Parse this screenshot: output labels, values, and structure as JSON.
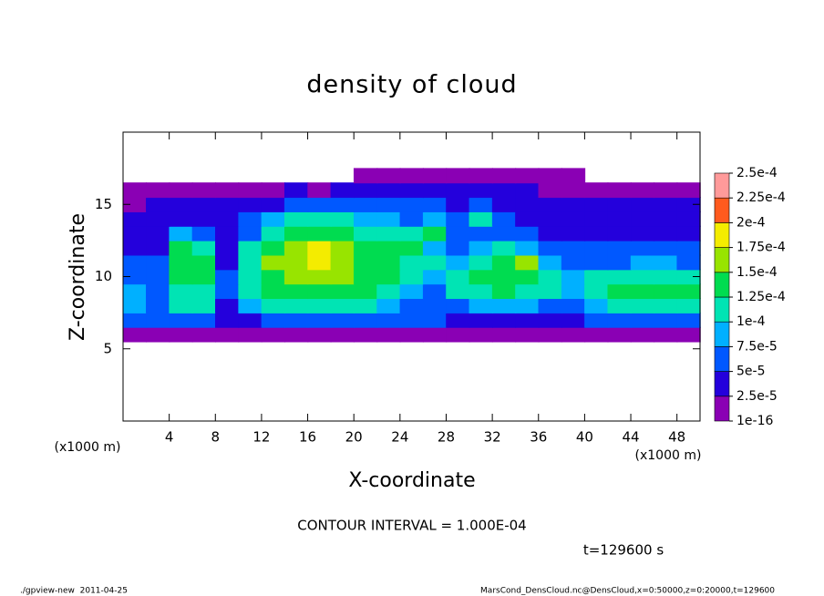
{
  "chart_data": {
    "type": "heatmap",
    "title": "density of cloud",
    "x_label": "X-coordinate",
    "y_label": "Z-coordinate",
    "x_unit": "(x1000 m)",
    "y_unit": "(x1000 m)",
    "note": "CONTOUR INTERVAL = 1.000E-04",
    "time": "t=129600 s",
    "footer_left": "./gpview-new  2011-04-25",
    "footer_right": "MarsCond_DensCloud.nc@DensCloud,x=0:50000,z=0:20000,t=129600",
    "xlim": [
      0,
      50
    ],
    "ylim": [
      0,
      20
    ],
    "xticks": [
      4,
      8,
      12,
      16,
      20,
      24,
      28,
      32,
      36,
      40,
      44,
      48
    ],
    "yticks": [
      5,
      10,
      15
    ],
    "cell_width": 2,
    "cell_height": 1,
    "x": [
      1,
      3,
      5,
      7,
      9,
      11,
      13,
      15,
      17,
      19,
      21,
      23,
      25,
      27,
      29,
      31,
      33,
      35,
      37,
      39,
      41,
      43,
      45,
      47,
      49
    ],
    "z": [
      6,
      7,
      8,
      9,
      10,
      11,
      12,
      13,
      14,
      15,
      16,
      17
    ],
    "values": [
      [
        1e-05,
        1e-05,
        1e-05,
        1e-05,
        1e-05,
        1e-05,
        1e-05,
        1e-05,
        1e-05,
        1e-05,
        1e-05,
        1e-05,
        1e-05,
        1e-05,
        1e-05,
        1e-05,
        1e-05,
        1e-05,
        1e-05,
        1e-05,
        1e-05,
        1e-05,
        1e-05,
        1e-05,
        1e-05
      ],
      [
        6e-05,
        5e-05,
        5e-05,
        5e-05,
        3e-05,
        3e-05,
        5e-05,
        5e-05,
        5e-05,
        5e-05,
        5e-05,
        5e-05,
        5e-05,
        5e-05,
        4e-05,
        4e-05,
        4e-05,
        4e-05,
        4e-05,
        4e-05,
        6e-05,
        6e-05,
        6e-05,
        6e-05,
        6e-05
      ],
      [
        9e-05,
        7e-05,
        0.00011,
        0.00011,
        4e-05,
        8e-05,
        0.0001,
        0.00011,
        0.00011,
        0.00011,
        0.00011,
        8e-05,
        6e-05,
        5e-05,
        7e-05,
        9e-05,
        9e-05,
        8e-05,
        6e-05,
        6e-05,
        9e-05,
        0.00011,
        0.00012,
        0.00012,
        0.00011
      ],
      [
        8e-05,
        6e-05,
        0.00012,
        0.00012,
        5e-05,
        0.0001,
        0.00013,
        0.00014,
        0.00014,
        0.00014,
        0.00013,
        0.00012,
        9e-05,
        7e-05,
        0.0001,
        0.00012,
        0.00013,
        0.00012,
        0.0001,
        8e-05,
        0.00011,
        0.00013,
        0.00014,
        0.00014,
        0.00013
      ],
      [
        7e-05,
        6e-05,
        0.00013,
        0.00013,
        5e-05,
        0.00011,
        0.00014,
        0.00016,
        0.00016,
        0.00015,
        0.00014,
        0.00013,
        0.00011,
        8e-05,
        0.00011,
        0.00013,
        0.00014,
        0.00013,
        0.00011,
        9e-05,
        0.0001,
        0.00011,
        0.00012,
        0.00011,
        0.0001
      ],
      [
        5e-05,
        5e-05,
        0.00014,
        0.00013,
        4e-05,
        0.00011,
        0.00015,
        0.00017,
        0.00018,
        0.00017,
        0.00014,
        0.00013,
        0.00012,
        0.0001,
        8e-05,
        0.00012,
        0.00014,
        0.00016,
        9e-05,
        7e-05,
        6e-05,
        7e-05,
        8e-05,
        8e-05,
        7e-05
      ],
      [
        4e-05,
        4e-05,
        0.00013,
        0.00011,
        4e-05,
        0.0001,
        0.00014,
        0.00017,
        0.00018,
        0.00017,
        0.00014,
        0.00013,
        0.00014,
        9e-05,
        6e-05,
        9e-05,
        0.00011,
        8e-05,
        6e-05,
        5e-05,
        5e-05,
        6e-05,
        5e-05,
        5e-05,
        5e-05
      ],
      [
        3e-05,
        4e-05,
        8e-05,
        6e-05,
        4e-05,
        7e-05,
        0.00012,
        0.00014,
        0.00014,
        0.00013,
        0.00012,
        0.00012,
        0.00012,
        0.00013,
        5e-05,
        5e-05,
        5e-05,
        5e-05,
        4e-05,
        4e-05,
        4e-05,
        4e-05,
        4e-05,
        4e-05,
        4e-05
      ],
      [
        3e-05,
        3e-05,
        4e-05,
        4e-05,
        4e-05,
        5e-05,
        8e-05,
        0.0001,
        0.0001,
        0.0001,
        9e-05,
        8e-05,
        7e-05,
        9e-05,
        6e-05,
        0.0001,
        6e-05,
        4e-05,
        4e-05,
        3e-05,
        3e-05,
        3e-05,
        3e-05,
        3e-05,
        3e-05
      ],
      [
        2e-05,
        3e-05,
        3e-05,
        3e-05,
        3e-05,
        4e-05,
        4e-05,
        5e-05,
        5e-05,
        5e-05,
        5e-05,
        6e-05,
        5e-05,
        5e-05,
        4e-05,
        7e-05,
        4e-05,
        3e-05,
        3e-05,
        3e-05,
        3e-05,
        3e-05,
        3e-05,
        3e-05,
        3e-05
      ],
      [
        1e-05,
        1e-05,
        1e-05,
        2e-05,
        1e-05,
        2e-05,
        2e-05,
        3e-05,
        2e-05,
        3e-05,
        3e-05,
        3e-05,
        3e-05,
        3e-05,
        3e-05,
        3e-05,
        3e-05,
        3e-05,
        2e-05,
        2e-05,
        2e-05,
        2e-05,
        2e-05,
        2e-05,
        1e-05
      ],
      [
        null,
        null,
        null,
        null,
        null,
        null,
        null,
        null,
        null,
        null,
        1e-05,
        1e-05,
        1e-05,
        1e-05,
        1e-05,
        1e-05,
        1e-05,
        1e-05,
        1e-05,
        1e-05,
        null,
        null,
        null,
        null,
        null
      ]
    ],
    "levels": [
      {
        "value": 1e-16,
        "label": "1e-16"
      },
      {
        "value": 2.5e-05,
        "label": "2.5e-5"
      },
      {
        "value": 5e-05,
        "label": "5e-5"
      },
      {
        "value": 7.5e-05,
        "label": "7.5e-5"
      },
      {
        "value": 0.0001,
        "label": "1e-4"
      },
      {
        "value": 0.000125,
        "label": "1.25e-4"
      },
      {
        "value": 0.00015,
        "label": "1.5e-4"
      },
      {
        "value": 0.000175,
        "label": "1.75e-4"
      },
      {
        "value": 0.0002,
        "label": "2e-4"
      },
      {
        "value": 0.000225,
        "label": "2.25e-4"
      },
      {
        "value": 0.00025,
        "label": "2.5e-4"
      }
    ],
    "colors": [
      "#8a00b4",
      "#2400dc",
      "#0058ff",
      "#00b0ff",
      "#00e4b4",
      "#00dc50",
      "#98e400",
      "#f4ec00",
      "#ff5a1e",
      "#ff9a9a"
    ]
  }
}
